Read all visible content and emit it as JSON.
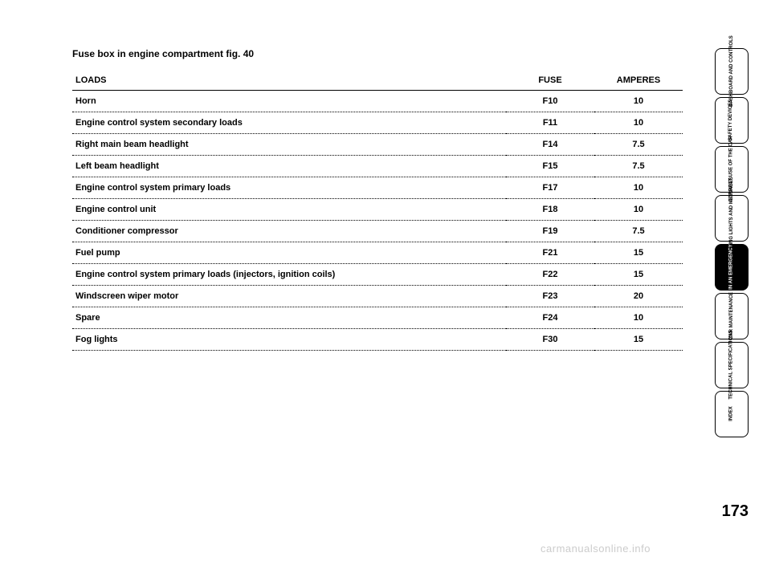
{
  "section_title": "Fuse box in engine compartment fig. 40",
  "table": {
    "headers": {
      "loads": "LOADS",
      "fuse": "FUSE",
      "amperes": "AMPERES"
    },
    "rows": [
      {
        "loads": "Horn",
        "fuse": "F10",
        "amperes": "10"
      },
      {
        "loads": "Engine control system secondary loads",
        "fuse": "F11",
        "amperes": "10"
      },
      {
        "loads": "Right main beam headlight",
        "fuse": "F14",
        "amperes": "7.5"
      },
      {
        "loads": "Left beam headlight",
        "fuse": "F15",
        "amperes": "7.5"
      },
      {
        "loads": "Engine control system primary loads",
        "fuse": "F17",
        "amperes": "10"
      },
      {
        "loads": "Engine control unit",
        "fuse": "F18",
        "amperes": "10"
      },
      {
        "loads": "Conditioner compressor",
        "fuse": "F19",
        "amperes": "7.5"
      },
      {
        "loads": "Fuel pump",
        "fuse": "F21",
        "amperes": "15"
      },
      {
        "loads": "Engine control system primary loads (injectors, ignition coils)",
        "fuse": "F22",
        "amperes": "15"
      },
      {
        "loads": "Windscreen wiper motor",
        "fuse": "F23",
        "amperes": "20"
      },
      {
        "loads": "Spare",
        "fuse": "F24",
        "amperes": "10"
      },
      {
        "loads": "Fog lights",
        "fuse": "F30",
        "amperes": "15"
      }
    ]
  },
  "tabs": [
    {
      "label": "DASHBOARD\nAND CONTROLS",
      "active": false
    },
    {
      "label": "SAFETY\nDEVICES",
      "active": false
    },
    {
      "label": "CORRECT USE\nOF THE CAR",
      "active": false
    },
    {
      "label": "WARNING\nLIGHTS AND\nMESSAGES",
      "active": false
    },
    {
      "label": "IN AN\nEMERGENCY",
      "active": true
    },
    {
      "label": "CAR\nMAINTENANCE",
      "active": false
    },
    {
      "label": "TECHNICAL\nSPECIFICATIONS",
      "active": false
    },
    {
      "label": "INDEX",
      "active": false
    }
  ],
  "page_number": "173",
  "watermark": "carmanualsonline.info"
}
